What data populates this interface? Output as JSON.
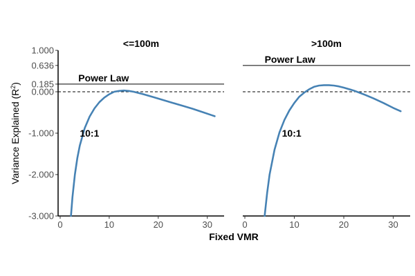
{
  "chart_data": {
    "type": "line",
    "xlabel": "Fixed VMR",
    "ylabel_main": "Variance Explained (R",
    "ylabel_sup": "2",
    "ylabel_close": ")",
    "ylim": [
      -3.0,
      1.0
    ],
    "xlim": [
      0,
      33
    ],
    "y_ticks": [
      {
        "value": 1.0,
        "label": "1.000"
      },
      {
        "value": 0.636,
        "label": "0.636"
      },
      {
        "value": 0.185,
        "label": "0.185"
      },
      {
        "value": 0.0,
        "label": "0.000"
      },
      {
        "value": -1.0,
        "label": "-1.000"
      },
      {
        "value": -2.0,
        "label": "-2.000"
      },
      {
        "value": -3.0,
        "label": "-3.000"
      }
    ],
    "x_ticks": [
      {
        "value": 0,
        "label": "0"
      },
      {
        "value": 10,
        "label": "10"
      },
      {
        "value": 20,
        "label": "20"
      },
      {
        "value": 30,
        "label": "30"
      }
    ],
    "zero_line": 0.0,
    "line_color": "#4682B4",
    "panels": [
      {
        "title": "<=100m",
        "reference_value": 0.185,
        "reference_label": "Power Law",
        "annotation": "10:1",
        "series": {
          "x": [
            2.2,
            2.5,
            3,
            3.5,
            4,
            5,
            6,
            7,
            8,
            9,
            10,
            11,
            12,
            13,
            14,
            15,
            17,
            19,
            21,
            23,
            25,
            27,
            29,
            31,
            31.5
          ],
          "y": [
            -3.0,
            -2.55,
            -2.0,
            -1.6,
            -1.3,
            -0.88,
            -0.6,
            -0.4,
            -0.25,
            -0.14,
            -0.06,
            0.0,
            0.02,
            0.03,
            0.02,
            0.0,
            -0.06,
            -0.13,
            -0.2,
            -0.27,
            -0.34,
            -0.41,
            -0.49,
            -0.57,
            -0.59
          ]
        }
      },
      {
        "title": ">100m",
        "reference_value": 0.636,
        "reference_label": "Power Law",
        "annotation": "10:1",
        "series": {
          "x": [
            4.0,
            4.5,
            5,
            6,
            7,
            8,
            9,
            10,
            11,
            12,
            13,
            14,
            15,
            16,
            17,
            18,
            19,
            20,
            22,
            24,
            26,
            28,
            30,
            31.5
          ],
          "y": [
            -3.0,
            -2.45,
            -2.0,
            -1.4,
            -0.98,
            -0.68,
            -0.45,
            -0.27,
            -0.12,
            -0.02,
            0.06,
            0.12,
            0.15,
            0.16,
            0.16,
            0.15,
            0.13,
            0.1,
            0.03,
            -0.06,
            -0.16,
            -0.27,
            -0.39,
            -0.47
          ]
        }
      }
    ]
  }
}
